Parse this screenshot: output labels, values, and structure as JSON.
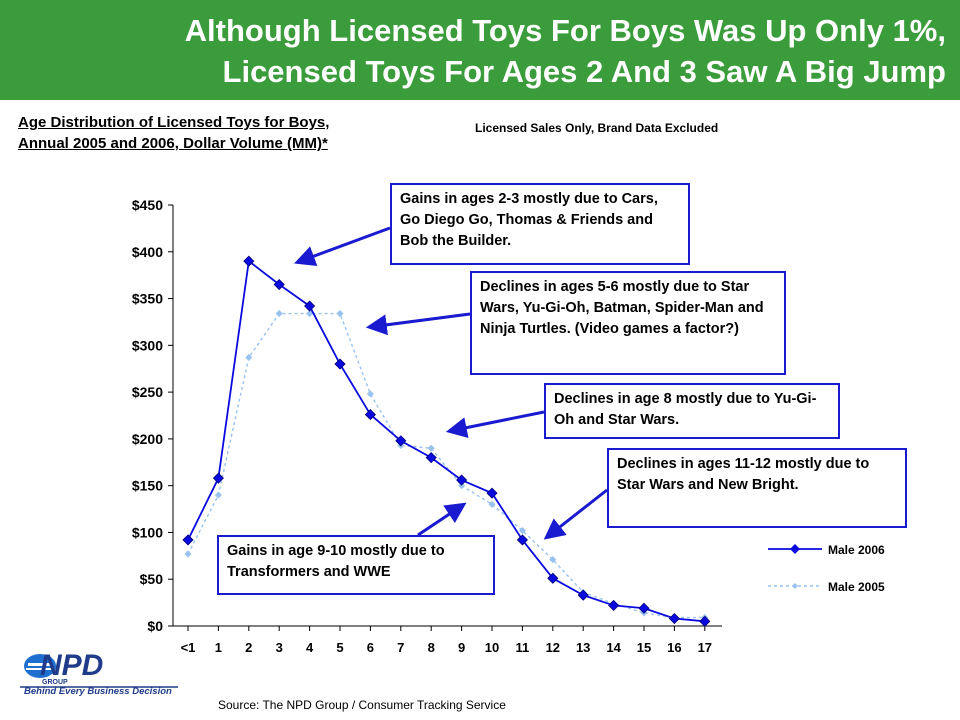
{
  "header": {
    "title_line1": "Although Licensed Toys For Boys Was Up Only 1%,",
    "title_line2": "Licensed Toys For Ages 2 And 3 Saw A Big Jump"
  },
  "subtitle_line1": "Age Distribution of Licensed Toys for Boys,",
  "subtitle_line2": "Annual 2005 and 2006, Dollar Volume (MM)*",
  "note": "Licensed Sales Only, Brand Data Excluded",
  "callouts": {
    "gains_2_3": "Gains in ages 2-3 mostly due to Cars, Go Diego Go, Thomas & Friends and Bob the Builder.",
    "declines_5_6": "Declines in ages 5-6 mostly due to Star Wars, Yu-Gi-Oh, Batman, Spider-Man and Ninja Turtles. (Video games a factor?)",
    "declines_8": "Declines in age 8 mostly due to Yu-Gi-Oh and Star Wars.",
    "declines_11_12": "Declines in ages 11-12 mostly due to Star Wars and New Bright.",
    "gains_9_10": "Gains in age 9-10 mostly due to Transformers and WWE"
  },
  "source": "Source:  The NPD Group / Consumer Tracking Service",
  "logo": {
    "name": "NPD",
    "sub": "GROUP",
    "tagline": "Behind Every Business Decision"
  },
  "colors": {
    "banner": "#3a9c3a",
    "male_2006": "#0a0adf",
    "male_2005": "#99c2ee",
    "callout_border": "#1a1ad0"
  },
  "chart_data": {
    "type": "line",
    "categories": [
      "<1",
      "1",
      "2",
      "3",
      "4",
      "5",
      "6",
      "7",
      "8",
      "9",
      "10",
      "11",
      "12",
      "13",
      "14",
      "15",
      "16",
      "17"
    ],
    "series": [
      {
        "name": "Male 2006",
        "values": [
          92,
          158,
          390,
          365,
          342,
          280,
          226,
          198,
          180,
          156,
          142,
          92,
          51,
          33,
          22,
          19,
          8,
          5
        ]
      },
      {
        "name": "Male 2005",
        "values": [
          77,
          140,
          287,
          334,
          334,
          334,
          248,
          193,
          190,
          150,
          130,
          102,
          71,
          36,
          24,
          14,
          9,
          9
        ]
      }
    ],
    "y_ticks": [
      "$0",
      "$50",
      "$100",
      "$150",
      "$200",
      "$250",
      "$300",
      "$350",
      "$400",
      "$450"
    ],
    "ylim": [
      0,
      450
    ],
    "legend_position": "right"
  }
}
